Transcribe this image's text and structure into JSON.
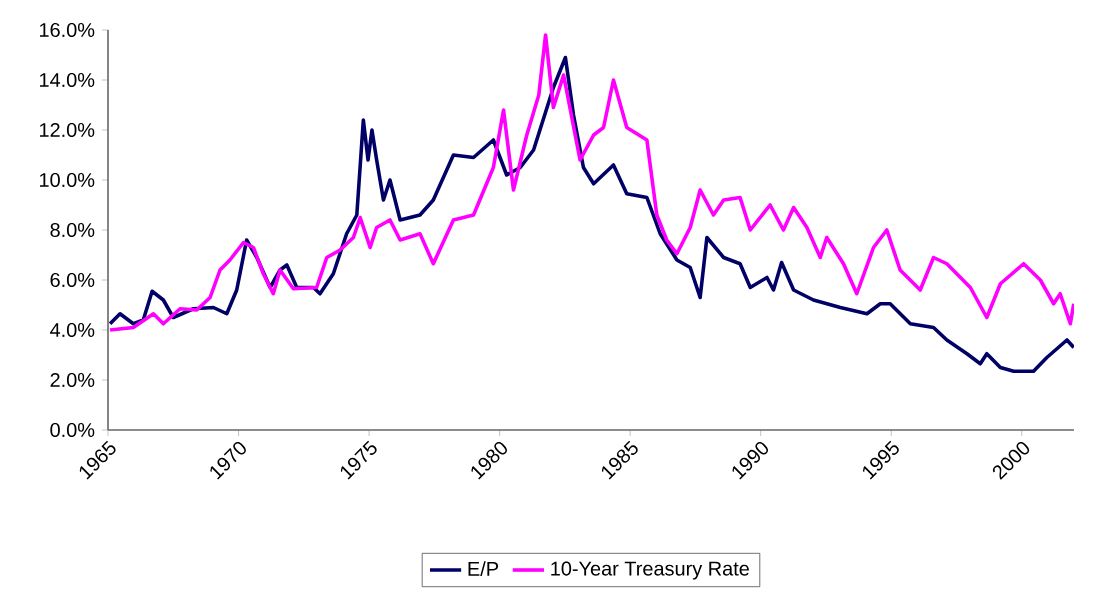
{
  "chart_data": {
    "type": "line",
    "xlim": [
      1965,
      2002
    ],
    "ylim": [
      0,
      16
    ],
    "xticks": [
      1965,
      1970,
      1975,
      1980,
      1985,
      1990,
      1995,
      2000
    ],
    "yticks": [
      {
        "value": 0,
        "label": "0.0%"
      },
      {
        "value": 2,
        "label": "2.0%"
      },
      {
        "value": 4,
        "label": "4.0%"
      },
      {
        "value": 6,
        "label": "6.0%"
      },
      {
        "value": 8,
        "label": "8.0%"
      },
      {
        "value": 10,
        "label": "10.0%"
      },
      {
        "value": 12,
        "label": "12.0%"
      },
      {
        "value": 14,
        "label": "14.0%"
      },
      {
        "value": 16,
        "label": "16.0%"
      }
    ],
    "grid": false,
    "legend": "bottom",
    "marker": "none",
    "line_style": "solid",
    "series": [
      {
        "name": "E/P",
        "color": "#000066",
        "x": [
          1965.08,
          1965.46,
          1965.97,
          1966.35,
          1966.69,
          1967.12,
          1967.5,
          1968.27,
          1969.04,
          1969.55,
          1969.93,
          1970.31,
          1970.7,
          1971.21,
          1971.59,
          1971.85,
          1972.23,
          1972.87,
          1973.12,
          1973.63,
          1974.14,
          1974.53,
          1974.78,
          1974.96,
          1975.11,
          1975.29,
          1975.55,
          1975.8,
          1976.19,
          1976.95,
          1977.46,
          1978.23,
          1979.0,
          1979.76,
          1980.27,
          1980.79,
          1981.3,
          1982.06,
          1982.52,
          1982.83,
          1983.21,
          1983.6,
          1984.36,
          1984.87,
          1985.64,
          1986.15,
          1986.79,
          1987.3,
          1987.68,
          1987.94,
          1988.58,
          1989.21,
          1989.6,
          1990.24,
          1990.49,
          1990.8,
          1991.26,
          1992.02,
          1993.05,
          1994.07,
          1994.58,
          1994.96,
          1995.73,
          1996.62,
          1997.13,
          1997.9,
          1998.41,
          1998.66,
          1999.18,
          1999.69,
          2000.45,
          2000.96,
          2001.73,
          2001.99
        ],
        "values": [
          4.25,
          4.65,
          4.25,
          4.4,
          5.55,
          5.2,
          4.5,
          4.85,
          4.9,
          4.65,
          5.6,
          7.6,
          6.9,
          5.7,
          6.4,
          6.6,
          5.7,
          5.7,
          5.45,
          6.25,
          7.85,
          8.6,
          12.4,
          10.8,
          12.0,
          10.8,
          9.2,
          10.0,
          8.4,
          8.6,
          9.2,
          11.0,
          10.9,
          11.6,
          10.2,
          10.5,
          11.2,
          13.7,
          14.9,
          12.6,
          10.5,
          9.85,
          10.6,
          9.45,
          9.3,
          7.85,
          6.8,
          6.5,
          5.3,
          7.7,
          6.9,
          6.65,
          5.7,
          6.1,
          5.6,
          6.7,
          5.6,
          5.2,
          4.9,
          4.65,
          5.05,
          5.05,
          4.25,
          4.1,
          3.6,
          3.05,
          2.65,
          3.05,
          2.5,
          2.35,
          2.35,
          2.9,
          3.6,
          3.3
        ]
      },
      {
        "name": "10-Year Treasury Rate",
        "color": "#ff00ff",
        "x": [
          1965.08,
          1965.97,
          1966.74,
          1967.12,
          1967.76,
          1968.4,
          1968.91,
          1969.29,
          1969.67,
          1970.19,
          1970.57,
          1970.95,
          1971.33,
          1971.59,
          1972.1,
          1972.99,
          1973.38,
          1973.89,
          1974.4,
          1974.66,
          1975.04,
          1975.29,
          1975.8,
          1976.19,
          1976.95,
          1977.46,
          1978.23,
          1979.0,
          1979.76,
          1980.15,
          1980.53,
          1981.04,
          1981.5,
          1981.76,
          1982.06,
          1982.45,
          1983.08,
          1983.6,
          1983.98,
          1984.36,
          1984.87,
          1985.64,
          1986.02,
          1986.4,
          1986.79,
          1987.3,
          1987.68,
          1988.19,
          1988.58,
          1989.21,
          1989.6,
          1990.36,
          1990.87,
          1991.26,
          1991.77,
          1992.28,
          1992.53,
          1993.17,
          1993.68,
          1994.32,
          1994.83,
          1995.34,
          1996.11,
          1996.62,
          1997.13,
          1998.03,
          1998.66,
          1999.18,
          2000.07,
          2000.71,
          2001.22,
          2001.47,
          2001.86,
          2001.99
        ],
        "values": [
          4.0,
          4.1,
          4.65,
          4.25,
          4.85,
          4.8,
          5.3,
          6.4,
          6.8,
          7.5,
          7.3,
          6.25,
          5.45,
          6.4,
          5.65,
          5.7,
          6.9,
          7.2,
          7.7,
          8.5,
          7.3,
          8.1,
          8.4,
          7.6,
          7.85,
          6.65,
          8.4,
          8.6,
          10.5,
          12.8,
          9.6,
          11.8,
          13.4,
          15.8,
          12.9,
          14.2,
          10.8,
          11.8,
          12.1,
          14.0,
          12.1,
          11.6,
          8.6,
          7.6,
          7.05,
          8.1,
          9.6,
          8.6,
          9.2,
          9.3,
          8.0,
          9.0,
          8.0,
          8.9,
          8.1,
          6.9,
          7.7,
          6.65,
          5.45,
          7.3,
          8.0,
          6.4,
          5.6,
          6.9,
          6.65,
          5.7,
          4.5,
          5.85,
          6.65,
          6.0,
          5.05,
          5.45,
          4.25,
          5.05
        ]
      }
    ]
  }
}
